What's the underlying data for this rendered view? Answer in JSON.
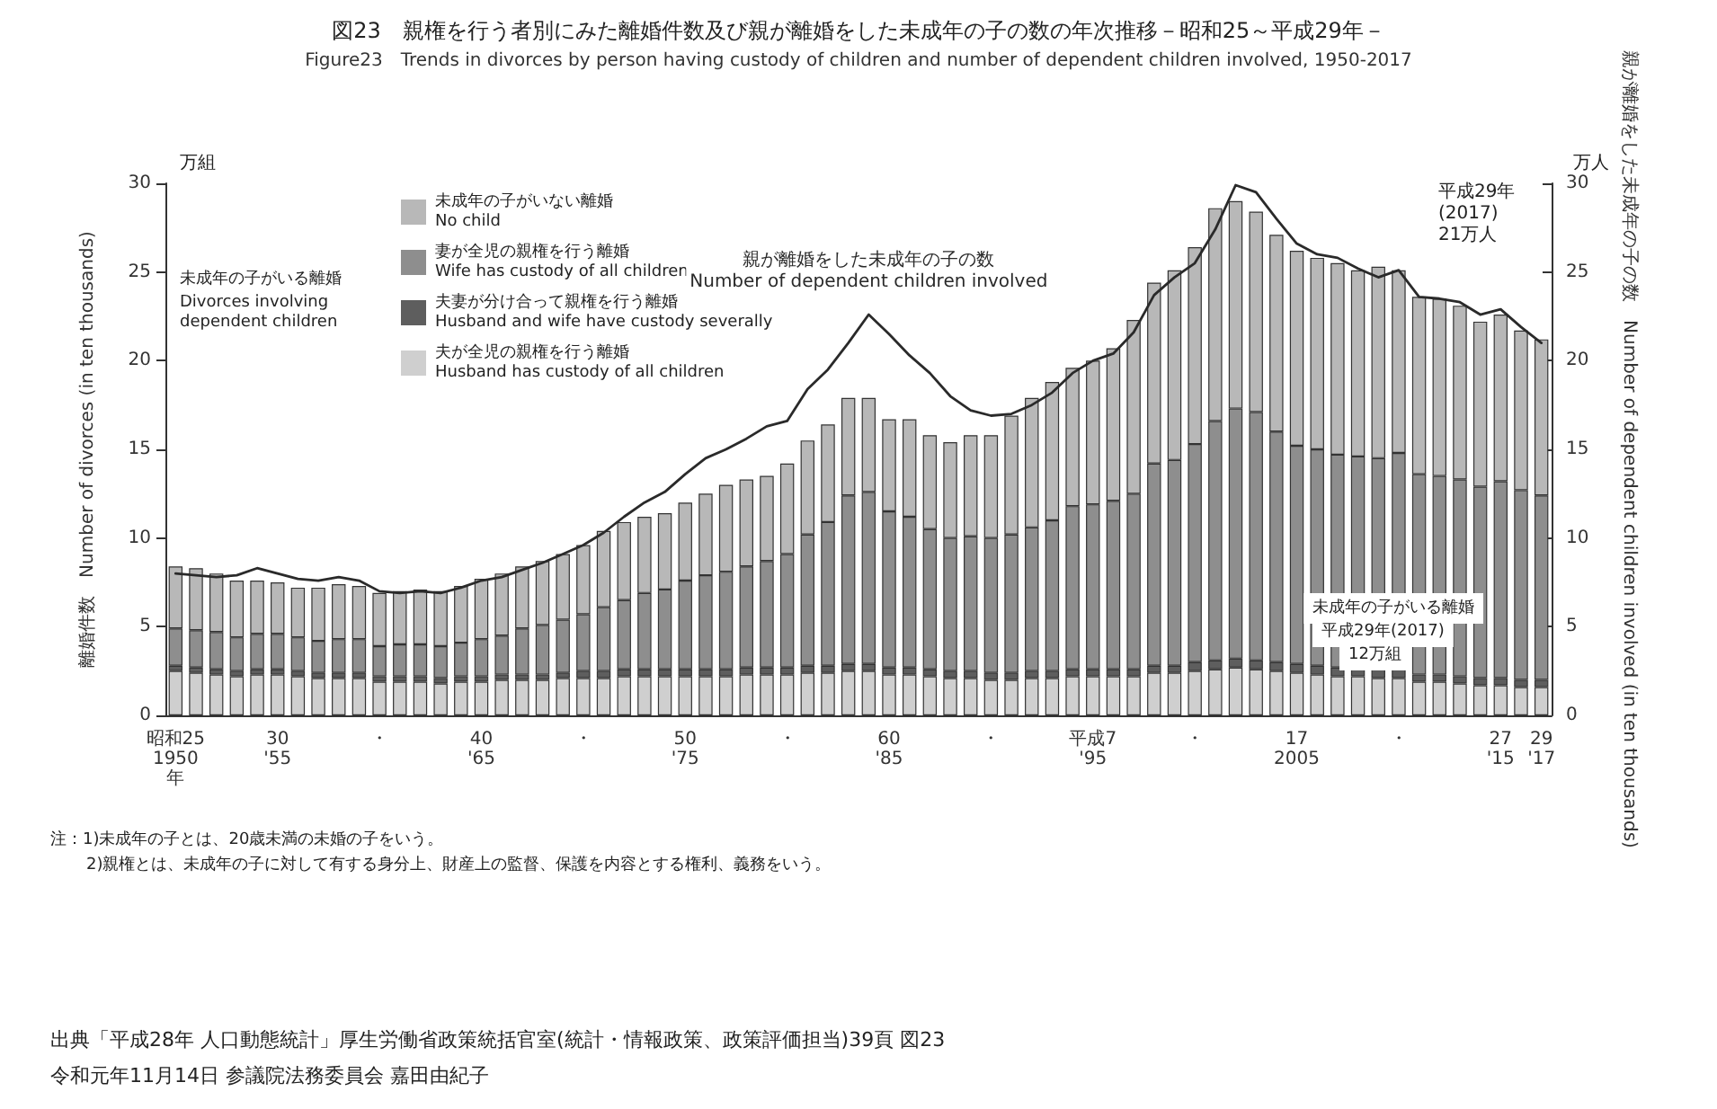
{
  "chart_data": {
    "type": "bar",
    "stacked": true,
    "grid": false,
    "legend": "top left",
    "title": "図23　親権を行う者別にみた離婚件数及び親が離婚をした未成年の子の数の年次推移－昭和25～平成29年－",
    "subtitle": "Figure23　Trends in divorces by person having custody of children and number of dependent children involved, 1950-2017",
    "ylabel": "離婚件数　Number of divorces (in ten thousands)",
    "y2label": "親が離婚をした未成年の子の数　Number of dependent children involved (in ten thousands)",
    "categories": [
      "昭和25\n1950\n年",
      null,
      null,
      null,
      null,
      "30\n'55",
      null,
      null,
      null,
      null,
      "・",
      null,
      null,
      null,
      null,
      "40\n'65",
      null,
      null,
      null,
      null,
      "・",
      null,
      null,
      null,
      null,
      "50\n'75",
      null,
      null,
      null,
      null,
      "・",
      null,
      null,
      null,
      null,
      "60\n'85",
      null,
      null,
      null,
      null,
      "・",
      null,
      null,
      null,
      null,
      "平成7\n'95",
      null,
      null,
      null,
      null,
      "・",
      null,
      null,
      null,
      null,
      "17\n2005",
      null,
      null,
      null,
      null,
      "・",
      null,
      null,
      null,
      null,
      "27\n'15",
      null,
      "29\n'17"
    ],
    "ylim": [
      0,
      30
    ],
    "yticks": [
      0,
      5,
      10,
      15,
      20,
      25,
      30
    ],
    "y2lim": [
      0,
      30
    ],
    "y2ticks": [
      0,
      5,
      10,
      15,
      20,
      25,
      30
    ],
    "series": [
      {
        "name": "夫が全児の親権を行う離婚\nHusband has custody of all children",
        "color": "#cfcfcf",
        "values": [
          2.5,
          2.4,
          2.3,
          2.2,
          2.3,
          2.3,
          2.2,
          2.1,
          2.1,
          2.1,
          1.9,
          1.9,
          1.9,
          1.8,
          1.9,
          1.9,
          2.0,
          2.0,
          2.0,
          2.1,
          2.1,
          2.1,
          2.2,
          2.2,
          2.2,
          2.2,
          2.2,
          2.2,
          2.3,
          2.3,
          2.3,
          2.4,
          2.4,
          2.5,
          2.5,
          2.3,
          2.3,
          2.2,
          2.1,
          2.1,
          2.0,
          2.0,
          2.1,
          2.1,
          2.2,
          2.2,
          2.2,
          2.2,
          2.4,
          2.4,
          2.5,
          2.6,
          2.7,
          2.6,
          2.5,
          2.4,
          2.3,
          2.2,
          2.2,
          2.1,
          2.1,
          1.9,
          1.9,
          1.8,
          1.7,
          1.7,
          1.6,
          1.6
        ]
      },
      {
        "name": "夫妻が分け合って親権を行う離婚\nHusband and wife have custody severally",
        "color": "#5e5e5e",
        "values": [
          0.3,
          0.3,
          0.3,
          0.3,
          0.3,
          0.3,
          0.3,
          0.3,
          0.3,
          0.3,
          0.3,
          0.3,
          0.3,
          0.3,
          0.3,
          0.3,
          0.3,
          0.3,
          0.3,
          0.3,
          0.4,
          0.4,
          0.4,
          0.4,
          0.4,
          0.4,
          0.4,
          0.4,
          0.4,
          0.4,
          0.4,
          0.4,
          0.4,
          0.4,
          0.4,
          0.4,
          0.4,
          0.4,
          0.4,
          0.4,
          0.4,
          0.4,
          0.4,
          0.4,
          0.4,
          0.4,
          0.4,
          0.4,
          0.4,
          0.4,
          0.5,
          0.5,
          0.5,
          0.5,
          0.5,
          0.5,
          0.5,
          0.5,
          0.5,
          0.5,
          0.5,
          0.4,
          0.4,
          0.4,
          0.4,
          0.4,
          0.4,
          0.4
        ]
      },
      {
        "name": "妻が全児の親権を行う離婚\nWife has custody of all children",
        "color": "#8e8e8e",
        "values": [
          2.1,
          2.1,
          2.1,
          1.9,
          2.0,
          2.0,
          1.9,
          1.8,
          1.9,
          1.9,
          1.7,
          1.8,
          1.8,
          1.8,
          1.9,
          2.1,
          2.2,
          2.6,
          2.8,
          3.0,
          3.2,
          3.6,
          3.9,
          4.3,
          4.5,
          5.0,
          5.3,
          5.5,
          5.7,
          6.0,
          6.4,
          7.4,
          8.1,
          9.5,
          9.7,
          8.8,
          8.5,
          7.9,
          7.5,
          7.6,
          7.6,
          7.8,
          8.1,
          8.5,
          9.2,
          9.3,
          9.5,
          9.9,
          11.4,
          11.6,
          12.3,
          13.5,
          14.1,
          14.0,
          13.0,
          12.3,
          12.2,
          12.0,
          11.9,
          11.9,
          12.2,
          11.3,
          11.2,
          11.1,
          10.8,
          11.1,
          10.7,
          10.4
        ]
      },
      {
        "name": "未成年の子がいない離婚\nNo child",
        "color": "#b8b8b8",
        "values": [
          3.5,
          3.5,
          3.3,
          3.2,
          3.0,
          2.9,
          2.8,
          3.0,
          3.1,
          3.0,
          3.0,
          3.0,
          3.1,
          3.1,
          3.2,
          3.4,
          3.5,
          3.5,
          3.6,
          3.7,
          3.9,
          4.3,
          4.4,
          4.3,
          4.3,
          4.4,
          4.6,
          4.9,
          4.9,
          4.8,
          5.1,
          5.3,
          5.5,
          5.5,
          5.3,
          5.2,
          5.5,
          5.3,
          5.4,
          5.7,
          5.8,
          6.7,
          7.3,
          7.8,
          7.8,
          8.1,
          8.6,
          9.8,
          10.2,
          10.7,
          11.1,
          12.0,
          11.7,
          11.3,
          11.1,
          11.0,
          10.8,
          10.8,
          10.5,
          10.8,
          10.3,
          10.0,
          10.0,
          9.8,
          9.3,
          9.4,
          9.0,
          8.8
        ]
      },
      {
        "name": "親が離婚をした未成年の子の数\nNumber of dependent children involved",
        "type": "line",
        "axis": "y2",
        "color": "#2a2a2a",
        "line_style": "solid",
        "values": [
          8.0,
          7.9,
          7.8,
          7.9,
          8.3,
          8.0,
          7.7,
          7.6,
          7.8,
          7.6,
          7.0,
          6.9,
          7.0,
          6.9,
          7.2,
          7.6,
          7.8,
          8.2,
          8.6,
          9.1,
          9.6,
          10.3,
          11.2,
          12.0,
          12.6,
          13.6,
          14.5,
          15.0,
          15.6,
          16.3,
          16.6,
          18.4,
          19.5,
          21.0,
          22.6,
          21.5,
          20.3,
          19.3,
          18.0,
          17.2,
          16.9,
          17.0,
          17.5,
          18.2,
          19.3,
          20.0,
          20.4,
          21.6,
          23.7,
          24.7,
          25.5,
          27.4,
          29.9,
          29.5,
          28.0,
          26.6,
          26.0,
          25.8,
          25.2,
          24.7,
          25.1,
          23.6,
          23.5,
          23.3,
          22.6,
          22.9,
          21.9,
          21.0
        ]
      }
    ],
    "annotations": [
      "万組",
      "万人",
      "未成年の子がいる離婚",
      "Divorces involving\ndependent children",
      "平成29年\n(2017)\n21万人",
      "未成年の子がいる離婚",
      "平成29年(2017)",
      "12万組",
      "注：1)未成年の子とは、20歳未満の未婚の子をいう。",
      "2)親権とは、未成年の子に対して有する身分上、財産上の監督、保護を内容とする権利、義務をいう。",
      "出典「平成28年 人口動態統計」厚生労働省政策統括官室(統計・情報政策、政策評価担当)39頁 図23",
      "令和元年11月14日 参議院法務委員会 嘉田由紀子"
    ]
  }
}
